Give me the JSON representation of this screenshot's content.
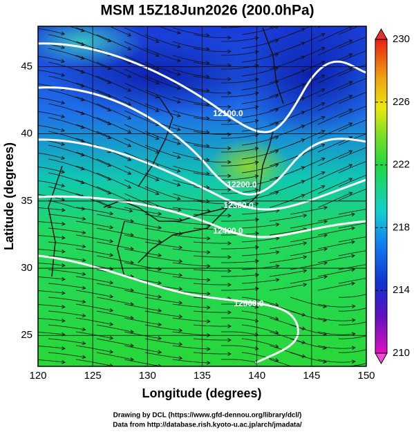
{
  "chart_data": {
    "type": "map",
    "title": "MSM 15Z18Jun2026 (200.0hPa)",
    "x_label": "Longitude (degrees)",
    "y_label": "Latitude  (degrees)",
    "xlim": [
      120,
      150
    ],
    "xticks": [
      120,
      125,
      130,
      135,
      140,
      145,
      150
    ],
    "ylim": [
      22.7,
      48
    ],
    "yticks": [
      25,
      30,
      35,
      40,
      45
    ],
    "colorbar_lim": [
      210,
      230
    ],
    "colorbar_ticks": [
      210,
      214,
      218,
      222,
      226,
      230
    ],
    "contour_labels": [
      "12100.0",
      "12200.0",
      "12300.0",
      "12400.0",
      "12500.0"
    ],
    "credits": [
      "Drawing by DCL (https://www.gfd-dennou.org/library/dcl/)",
      "Data from http://database.rish.kyoto-u.ac.jp/arch/jmadata/"
    ]
  }
}
